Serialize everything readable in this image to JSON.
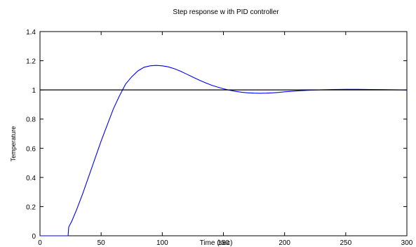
{
  "chart_data": {
    "type": "line",
    "title": "Step response w ith PID controller",
    "xlabel": "Time (sec)",
    "ylabel": "Temperature",
    "xlim": [
      0,
      300
    ],
    "ylim": [
      0,
      1.4
    ],
    "grid": false,
    "x_ticks": [
      "0",
      "50",
      "100",
      "150",
      "200",
      "250",
      "300"
    ],
    "y_ticks": [
      "0",
      "0.2",
      "0.4",
      "0.6",
      "0.8",
      "1",
      "1.2",
      "1.4"
    ],
    "series": [
      {
        "color": "#0000ff",
        "x": [
          0,
          22,
          23,
          23.5,
          26,
          30,
          35,
          40,
          45,
          50,
          55,
          60,
          65,
          70,
          75,
          80,
          85,
          90,
          95,
          100,
          105,
          110,
          115,
          120,
          125,
          130,
          135,
          140,
          145,
          150,
          155,
          160,
          165,
          170,
          175,
          180,
          185,
          190,
          195,
          200,
          210,
          220,
          230,
          240,
          250,
          260,
          270,
          280,
          290,
          300
        ],
        "y": [
          0,
          0,
          0,
          0.06,
          0.1,
          0.18,
          0.29,
          0.41,
          0.53,
          0.65,
          0.76,
          0.87,
          0.96,
          1.04,
          1.09,
          1.13,
          1.155,
          1.165,
          1.168,
          1.165,
          1.158,
          1.145,
          1.128,
          1.108,
          1.088,
          1.068,
          1.05,
          1.033,
          1.02,
          1.008,
          0.998,
          0.99,
          0.984,
          0.98,
          0.978,
          0.977,
          0.978,
          0.98,
          0.983,
          0.987,
          0.993,
          0.998,
          1.001,
          1.003,
          1.004,
          1.004,
          1.003,
          1.002,
          1.001,
          1.0
        ]
      },
      {
        "color": "#000000",
        "x": [
          0,
          300
        ],
        "y": [
          1,
          1
        ]
      }
    ]
  }
}
